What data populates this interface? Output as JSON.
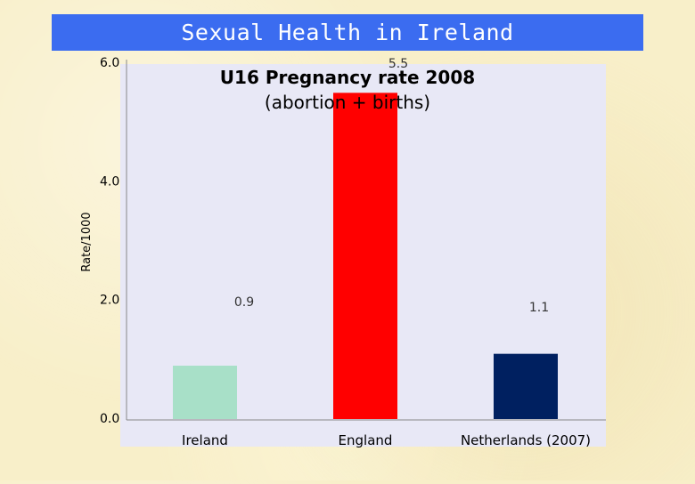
{
  "header": {
    "title": "Sexual Health in Ireland"
  },
  "chart_data": {
    "type": "bar",
    "title": "U16 Pregnancy rate 2008\n(abortion + births)",
    "ylabel": "Rate/1000",
    "xlabel": "",
    "ylim": [
      0,
      6
    ],
    "yticks": [
      "0.0",
      "2.0",
      "4.0",
      "6.0"
    ],
    "categories": [
      "Ireland",
      "England",
      "Netherlands (2007)"
    ],
    "values": [
      0.9,
      5.5,
      1.1
    ],
    "value_labels": [
      "0.9",
      "5.5",
      "1.1"
    ],
    "colors": [
      "#a8e0c8",
      "#ff0000",
      "#002060"
    ],
    "plot_background": "#e8e8f6",
    "grid": false,
    "legend": "none"
  }
}
